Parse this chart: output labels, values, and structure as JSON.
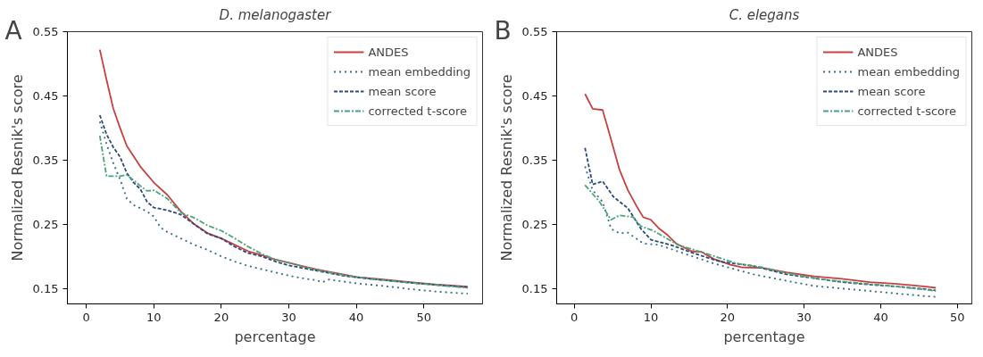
{
  "chart_data": [
    {
      "type": "line",
      "title": "D. melanogaster",
      "xlabel": "percentage",
      "ylabel": "Normalized Resnik's score",
      "annotations": [
        "A"
      ],
      "xlim": [
        -2.8,
        58.7
      ],
      "ylim": [
        0.126,
        0.55
      ],
      "xticks": [
        0,
        10,
        20,
        30,
        40,
        50
      ],
      "yticks": [
        0.15,
        0.25,
        0.35,
        0.45,
        0.55
      ],
      "legend": "top right",
      "grid": false,
      "series": [
        {
          "name": "ANDES",
          "color": "#c9403f",
          "line_style": "solid",
          "x": [
            2,
            3,
            4,
            5,
            6,
            8,
            10,
            12,
            14,
            16,
            18,
            20,
            22,
            24,
            26,
            28,
            30,
            32,
            34,
            36,
            38,
            40,
            44,
            48,
            52,
            56.5
          ],
          "values": [
            0.522,
            0.475,
            0.43,
            0.4,
            0.372,
            0.34,
            0.315,
            0.296,
            0.27,
            0.25,
            0.236,
            0.228,
            0.218,
            0.208,
            0.202,
            0.195,
            0.19,
            0.185,
            0.18,
            0.176,
            0.172,
            0.168,
            0.164,
            0.16,
            0.156,
            0.153
          ]
        },
        {
          "name": "mean embedding",
          "color": "#2f6f7e",
          "line_style": "dotted",
          "x": [
            2,
            3,
            4,
            5,
            6,
            7,
            8,
            9,
            10,
            11,
            12,
            14,
            16,
            18,
            20,
            22,
            24,
            26,
            28,
            30,
            32,
            34,
            35,
            36,
            38,
            40,
            44,
            48,
            52,
            56.5
          ],
          "values": [
            0.41,
            0.375,
            0.345,
            0.32,
            0.29,
            0.28,
            0.275,
            0.27,
            0.262,
            0.245,
            0.238,
            0.228,
            0.218,
            0.21,
            0.2,
            0.192,
            0.185,
            0.18,
            0.175,
            0.17,
            0.166,
            0.163,
            0.16,
            0.164,
            0.161,
            0.158,
            0.154,
            0.149,
            0.145,
            0.142
          ]
        },
        {
          "name": "mean score",
          "color": "#2c4a7a",
          "line_style": "dashed",
          "x": [
            2,
            3,
            4,
            5,
            6,
            7,
            8,
            9,
            10,
            12,
            14,
            16,
            18,
            20,
            22,
            24,
            26,
            28,
            30,
            34,
            38,
            42,
            46,
            50,
            56.5
          ],
          "values": [
            0.42,
            0.39,
            0.37,
            0.355,
            0.33,
            0.315,
            0.305,
            0.285,
            0.276,
            0.272,
            0.265,
            0.25,
            0.235,
            0.228,
            0.215,
            0.205,
            0.2,
            0.192,
            0.186,
            0.178,
            0.17,
            0.165,
            0.161,
            0.157,
            0.152
          ]
        },
        {
          "name": "corrected t-score",
          "color": "#4aa57a",
          "line_style": "dashdot",
          "x": [
            2,
            3,
            5,
            6,
            8,
            9,
            10,
            12,
            14,
            16,
            18,
            20,
            22,
            24,
            26,
            28,
            30,
            34,
            38,
            42,
            46,
            50,
            56.5
          ],
          "values": [
            0.388,
            0.325,
            0.325,
            0.327,
            0.31,
            0.302,
            0.303,
            0.29,
            0.268,
            0.26,
            0.248,
            0.24,
            0.228,
            0.215,
            0.204,
            0.195,
            0.19,
            0.179,
            0.171,
            0.165,
            0.161,
            0.157,
            0.151
          ]
        }
      ]
    },
    {
      "type": "line",
      "title": "C. elegans",
      "xlabel": "percentage",
      "ylabel": "Normalized Resnik's score",
      "annotations": [
        "B"
      ],
      "xlim": [
        -2.3,
        51.9
      ],
      "ylim": [
        0.126,
        0.55
      ],
      "xticks": [
        0,
        10,
        20,
        30,
        40,
        50
      ],
      "yticks": [
        0.15,
        0.25,
        0.35,
        0.45,
        0.55
      ],
      "legend": "top right",
      "grid": false,
      "series": [
        {
          "name": "ANDES",
          "color": "#c9403f",
          "line_style": "solid",
          "x": [
            1.4,
            2.4,
            3.7,
            4.8,
            5.9,
            7.0,
            8.1,
            9.0,
            10.0,
            11.1,
            12.2,
            13.3,
            15.3,
            16.6,
            18.2,
            20.4,
            21.8,
            24.5,
            27.7,
            31.3,
            34.9,
            38.6,
            42.2,
            45.9,
            47.2
          ],
          "values": [
            0.453,
            0.43,
            0.428,
            0.382,
            0.335,
            0.303,
            0.279,
            0.261,
            0.257,
            0.243,
            0.233,
            0.22,
            0.208,
            0.207,
            0.196,
            0.187,
            0.183,
            0.182,
            0.175,
            0.169,
            0.165,
            0.16,
            0.157,
            0.153,
            0.151
          ]
        },
        {
          "name": "mean embedding",
          "color": "#2f6f7e",
          "line_style": "dotted",
          "x": [
            1.4,
            2.4,
            3.7,
            4.8,
            5.9,
            7.0,
            9.0,
            11.0,
            14.7,
            18.2,
            23.4,
            27.7,
            31.3,
            38.6,
            45.9,
            47.2
          ],
          "values": [
            0.34,
            0.303,
            0.285,
            0.243,
            0.236,
            0.237,
            0.22,
            0.218,
            0.203,
            0.189,
            0.172,
            0.162,
            0.154,
            0.146,
            0.138,
            0.137
          ]
        },
        {
          "name": "mean score",
          "color": "#2c4a7a",
          "line_style": "dashed",
          "x": [
            1.4,
            2.4,
            3.7,
            5.1,
            7.0,
            8.7,
            10.0,
            12.8,
            15.3,
            19.0,
            23.4,
            27.7,
            31.3,
            34.9,
            38.6,
            42.2,
            45.9,
            47.2
          ],
          "values": [
            0.369,
            0.312,
            0.317,
            0.293,
            0.275,
            0.243,
            0.226,
            0.217,
            0.206,
            0.192,
            0.185,
            0.172,
            0.166,
            0.16,
            0.156,
            0.153,
            0.149,
            0.147
          ]
        },
        {
          "name": "corrected t-score",
          "color": "#4aa57a",
          "line_style": "dashdot",
          "x": [
            1.4,
            3.3,
            4.8,
            5.9,
            7.7,
            8.7,
            10.3,
            13.5,
            16.8,
            21.2,
            24.5,
            27.7,
            31.3,
            34.9,
            38.6,
            42.2,
            45.9,
            47.2
          ],
          "values": [
            0.311,
            0.285,
            0.257,
            0.264,
            0.261,
            0.247,
            0.24,
            0.218,
            0.206,
            0.189,
            0.183,
            0.174,
            0.166,
            0.161,
            0.157,
            0.153,
            0.148,
            0.146
          ]
        }
      ]
    }
  ]
}
